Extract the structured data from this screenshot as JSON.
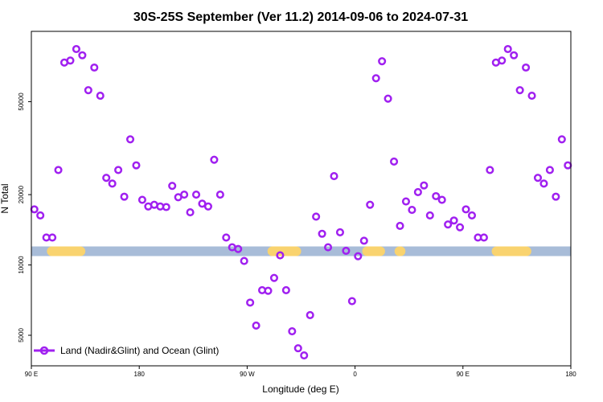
{
  "chart_data": {
    "type": "scatter",
    "title": "30S-25S September (Ver 11.2)   2014-09-06 to 2024-07-31",
    "xlabel": "Longitude (deg E)",
    "ylabel": "N Total",
    "x_scale": "longitude-wrapped",
    "x_range_deg": [
      90,
      450
    ],
    "x_ticks": [
      {
        "lon": 90,
        "label": "90 E"
      },
      {
        "lon": 180,
        "label": "180"
      },
      {
        "lon": 270,
        "label": "90 W"
      },
      {
        "lon": 360,
        "label": "0"
      },
      {
        "lon": 450,
        "label": "90 E"
      },
      {
        "lon": 540,
        "label": "180"
      }
    ],
    "x_range_shown_deg": [
      90,
      540
    ],
    "y_scale": "log",
    "ylim": [
      3700,
      100000
    ],
    "y_ticks": [
      {
        "value": 5000,
        "label": "5000"
      },
      {
        "value": 10000,
        "label": "10000"
      },
      {
        "value": 20000,
        "label": "20000"
      },
      {
        "value": 50000,
        "label": "50000"
      }
    ],
    "series": [
      {
        "name": "Land (Nadir&Glint) and Ocean (Glint)",
        "color": "#a020f0",
        "marker": "open-circle",
        "points": [
          [
            92.5,
            17300
          ],
          [
            97.5,
            16300
          ],
          [
            102.5,
            13100
          ],
          [
            107.5,
            13100
          ],
          [
            112.5,
            25500
          ],
          [
            117.5,
            73500
          ],
          [
            122.5,
            75000
          ],
          [
            127.5,
            84000
          ],
          [
            132.5,
            79000
          ],
          [
            137.5,
            56000
          ],
          [
            142.5,
            70000
          ],
          [
            147.5,
            53000
          ],
          [
            152.5,
            23600
          ],
          [
            157.5,
            22300
          ],
          [
            162.5,
            25500
          ],
          [
            167.5,
            19600
          ],
          [
            172.5,
            34500
          ],
          [
            177.5,
            26700
          ],
          [
            182.5,
            19000
          ],
          [
            187.5,
            17800
          ],
          [
            192.5,
            18100
          ],
          [
            197.5,
            17800
          ],
          [
            202.5,
            17700
          ],
          [
            207.5,
            21800
          ],
          [
            212.5,
            19500
          ],
          [
            217.5,
            20000
          ],
          [
            222.5,
            16800
          ],
          [
            227.5,
            20000
          ],
          [
            232.5,
            18300
          ],
          [
            237.5,
            17800
          ],
          [
            242.5,
            28200
          ],
          [
            247.5,
            20000
          ],
          [
            252.5,
            13100
          ],
          [
            257.5,
            11900
          ],
          [
            262.5,
            11700
          ],
          [
            267.5,
            10400
          ],
          [
            272.5,
            6900
          ],
          [
            277.5,
            5500
          ],
          [
            282.5,
            7800
          ],
          [
            287.5,
            7750
          ],
          [
            292.5,
            8800
          ],
          [
            297.5,
            11000
          ],
          [
            302.5,
            7800
          ],
          [
            307.5,
            5200
          ],
          [
            312.5,
            4400
          ],
          [
            317.5,
            4100
          ],
          [
            322.5,
            6100
          ],
          [
            327.5,
            16100
          ],
          [
            332.5,
            13600
          ],
          [
            337.5,
            11900
          ],
          [
            342.5,
            24000
          ],
          [
            347.5,
            13800
          ],
          [
            352.5,
            11500
          ],
          [
            357.5,
            7000
          ],
          [
            362.5,
            10900
          ],
          [
            367.5,
            12700
          ],
          [
            372.5,
            18100
          ],
          [
            377.5,
            63000
          ],
          [
            382.5,
            74500
          ],
          [
            387.5,
            51500
          ],
          [
            392.5,
            27700
          ],
          [
            397.5,
            14700
          ],
          [
            402.5,
            18700
          ],
          [
            407.5,
            17200
          ],
          [
            412.5,
            20500
          ],
          [
            417.5,
            21900
          ],
          [
            422.5,
            16300
          ],
          [
            427.5,
            19700
          ],
          [
            432.5,
            19000
          ],
          [
            437.5,
            14900
          ],
          [
            442.5,
            15500
          ],
          [
            447.5,
            14500
          ],
          [
            452.5,
            17300
          ],
          [
            457.5,
            16300
          ],
          [
            462.5,
            13100
          ],
          [
            467.5,
            13100
          ],
          [
            472.5,
            25500
          ],
          [
            477.5,
            73500
          ],
          [
            482.5,
            75000
          ],
          [
            487.5,
            84000
          ],
          [
            492.5,
            79000
          ],
          [
            497.5,
            56000
          ],
          [
            502.5,
            70000
          ],
          [
            507.5,
            53000
          ],
          [
            512.5,
            23600
          ],
          [
            517.5,
            22300
          ],
          [
            522.5,
            25500
          ],
          [
            527.5,
            19600
          ],
          [
            532.5,
            34500
          ],
          [
            537.5,
            26700
          ]
        ]
      }
    ],
    "reference_band": {
      "value": 11450,
      "color": "#a8bcd8",
      "land_color": "#f9d36f",
      "land_segments_deg": [
        [
          107,
          131
        ],
        [
          291,
          311
        ],
        [
          370,
          381
        ],
        [
          397,
          398
        ],
        [
          478,
          503
        ]
      ]
    },
    "legend": {
      "position": "bottom-left"
    },
    "grid": false
  }
}
